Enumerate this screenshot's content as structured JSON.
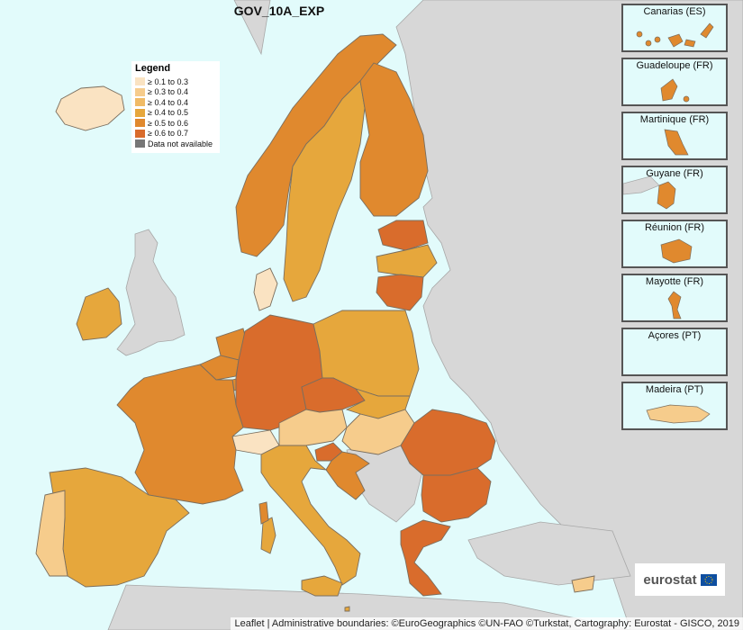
{
  "title": "GOV_10A_EXP",
  "legend": {
    "title": "Legend",
    "items": [
      {
        "label": "≥ 0.1 to 0.3",
        "color": "#fae3c2"
      },
      {
        "label": "≥ 0.3 to 0.4",
        "color": "#f6cc8c"
      },
      {
        "label": "≥ 0.4 to 0.4",
        "color": "#f0bb66"
      },
      {
        "label": "≥ 0.4 to 0.5",
        "color": "#e6a73c"
      },
      {
        "label": "≥ 0.5 to 0.6",
        "color": "#e0892e"
      },
      {
        "label": "≥ 0.6 to 0.7",
        "color": "#d96c2c"
      },
      {
        "label": "Data not available",
        "color": "#777777"
      }
    ]
  },
  "colors": {
    "sea": "#e2fbfb",
    "non_eu": "#d7d7d7",
    "border": "#7a6e5e"
  },
  "insets": [
    {
      "label": "Canarias (ES)"
    },
    {
      "label": "Guadeloupe (FR)"
    },
    {
      "label": "Martinique (FR)"
    },
    {
      "label": "Guyane (FR)"
    },
    {
      "label": "Réunion (FR)"
    },
    {
      "label": "Mayotte (FR)"
    },
    {
      "label": "Açores (PT)"
    },
    {
      "label": "Madeira (PT)"
    }
  ],
  "logo": {
    "text": "eurostat"
  },
  "attribution": "Leaflet | Administrative boundaries: ©EuroGeographics ©UN-FAO ©Turkstat, Cartography: Eurostat - GISCO, 2019"
}
